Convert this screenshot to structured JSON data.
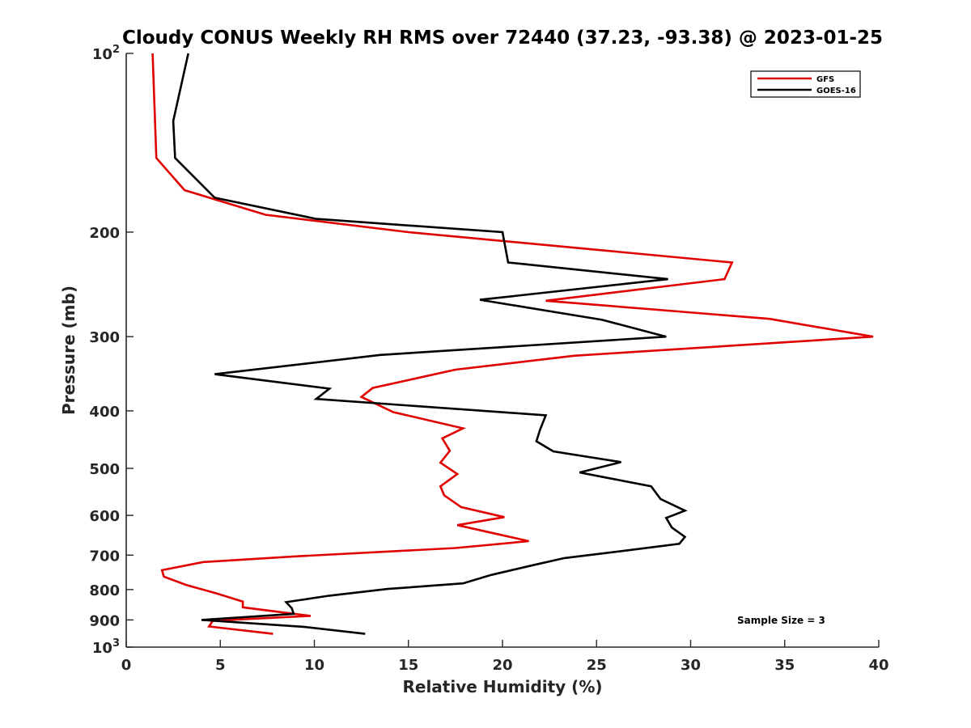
{
  "chart_data": {
    "type": "line",
    "title": "Cloudy CONUS Weekly RH RMS over 72440 (37.23, -93.38) @ 2023-01-25",
    "xlabel": "Relative Humidity (%)",
    "ylabel": "Pressure (mb)",
    "xlim": [
      0,
      40
    ],
    "ylim": [
      100,
      1000
    ],
    "y_scale": "log",
    "y_reversed": true,
    "x_ticks": [
      0,
      5,
      10,
      15,
      20,
      25,
      30,
      35,
      40
    ],
    "x_tick_labels": [
      "0",
      "5",
      "10",
      "15",
      "20",
      "25",
      "30",
      "35",
      "40"
    ],
    "y_ticks": [
      100,
      200,
      300,
      400,
      500,
      600,
      700,
      800,
      900,
      1000
    ],
    "y_tick_labels": [
      {
        "base": "10",
        "exp": "2"
      },
      {
        "base": "200",
        "exp": ""
      },
      {
        "base": "300",
        "exp": ""
      },
      {
        "base": "400",
        "exp": ""
      },
      {
        "base": "500",
        "exp": ""
      },
      {
        "base": "600",
        "exp": ""
      },
      {
        "base": "700",
        "exp": ""
      },
      {
        "base": "800",
        "exp": ""
      },
      {
        "base": "900",
        "exp": ""
      },
      {
        "base": "10",
        "exp": "3"
      }
    ],
    "grid": false,
    "legend_position": "top-right",
    "annotation": "Sample Size = 3",
    "series": [
      {
        "name": "GFS",
        "color": "#e00000",
        "points": [
          [
            1.4,
            100
          ],
          [
            1.6,
            150
          ],
          [
            3.1,
            170
          ],
          [
            7.4,
            187
          ],
          [
            15.0,
            200
          ],
          [
            32.2,
            225
          ],
          [
            31.8,
            240
          ],
          [
            22.3,
            261
          ],
          [
            34.2,
            280
          ],
          [
            39.7,
            300
          ],
          [
            23.8,
            323
          ],
          [
            17.5,
            341
          ],
          [
            13.1,
            366
          ],
          [
            12.5,
            379
          ],
          [
            14.2,
            402
          ],
          [
            17.9,
            428
          ],
          [
            16.8,
            445
          ],
          [
            17.2,
            467
          ],
          [
            16.7,
            489
          ],
          [
            17.6,
            511
          ],
          [
            16.7,
            536
          ],
          [
            16.9,
            555
          ],
          [
            17.8,
            581
          ],
          [
            20.1,
            604
          ],
          [
            17.6,
            623
          ],
          [
            19.9,
            647
          ],
          [
            21.4,
            663
          ],
          [
            17.5,
            681
          ],
          [
            9.1,
            703
          ],
          [
            4.1,
            719
          ],
          [
            1.9,
            742
          ],
          [
            2.0,
            761
          ],
          [
            3.2,
            786
          ],
          [
            4.8,
            812
          ],
          [
            6.2,
            838
          ],
          [
            6.2,
            857
          ],
          [
            9.8,
            886
          ],
          [
            4.6,
            903
          ],
          [
            4.4,
            923
          ],
          [
            7.8,
            950
          ]
        ]
      },
      {
        "name": "GOES-16",
        "color": "#000000",
        "points": [
          [
            3.3,
            100
          ],
          [
            2.5,
            130
          ],
          [
            2.6,
            150
          ],
          [
            4.7,
            175
          ],
          [
            10.1,
            190
          ],
          [
            20.0,
            200
          ],
          [
            20.3,
            225
          ],
          [
            28.8,
            240
          ],
          [
            18.8,
            260
          ],
          [
            25.3,
            281
          ],
          [
            28.7,
            300
          ],
          [
            13.5,
            322
          ],
          [
            4.7,
            347
          ],
          [
            10.8,
            367
          ],
          [
            10.1,
            382
          ],
          [
            22.3,
            407
          ],
          [
            22.0,
            430
          ],
          [
            21.8,
            450
          ],
          [
            22.7,
            468
          ],
          [
            26.3,
            488
          ],
          [
            24.1,
            508
          ],
          [
            27.9,
            536
          ],
          [
            28.4,
            563
          ],
          [
            29.7,
            589
          ],
          [
            28.7,
            606
          ],
          [
            29.0,
            629
          ],
          [
            29.7,
            652
          ],
          [
            29.4,
            670
          ],
          [
            26.5,
            688
          ],
          [
            23.3,
            708
          ],
          [
            21.6,
            728
          ],
          [
            19.4,
            756
          ],
          [
            17.9,
            781
          ],
          [
            13.9,
            798
          ],
          [
            10.8,
            819
          ],
          [
            8.5,
            840
          ],
          [
            8.8,
            860
          ],
          [
            8.9,
            879
          ],
          [
            4.0,
            900
          ],
          [
            9.5,
            925
          ],
          [
            12.7,
            950
          ]
        ]
      }
    ]
  }
}
